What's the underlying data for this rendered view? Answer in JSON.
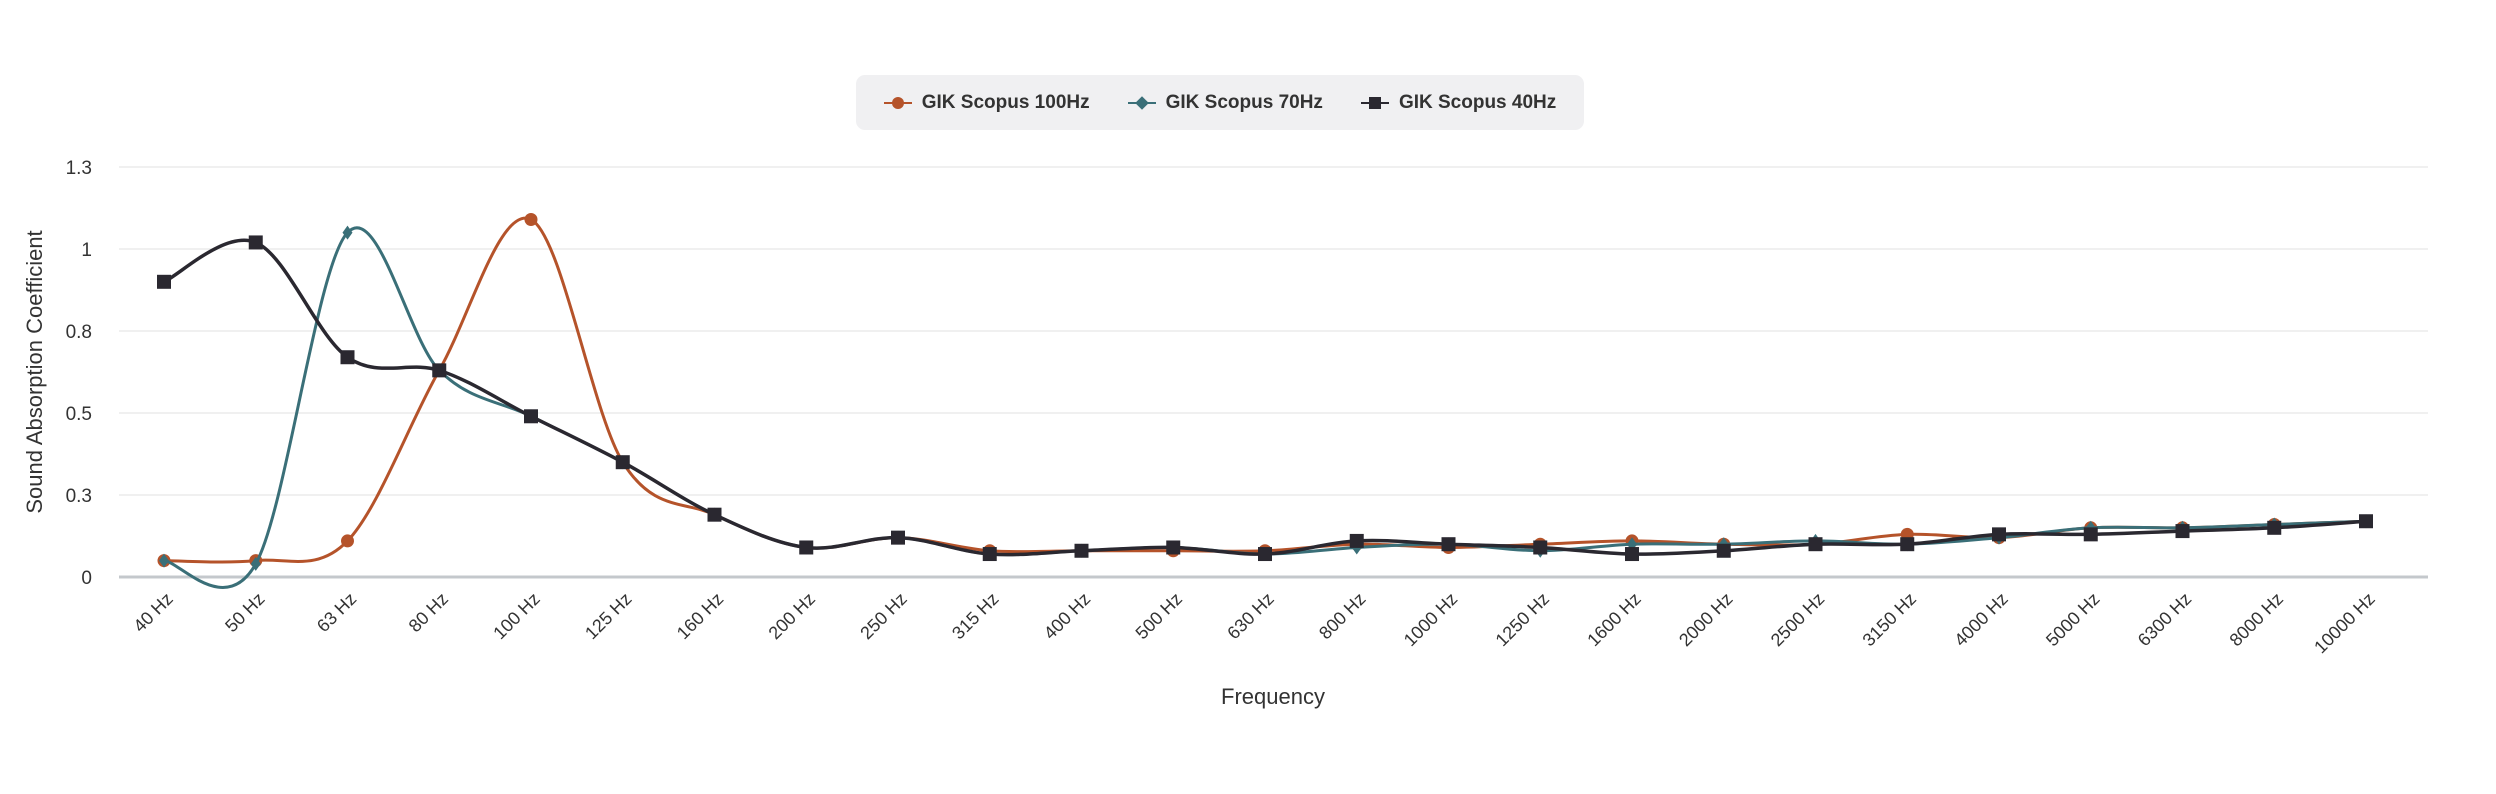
{
  "chart_data": {
    "type": "line",
    "title": "",
    "xlabel": "Frequency",
    "ylabel": "Sound Absorption Coefficient",
    "ylim": [
      0,
      1.25
    ],
    "y_ticks": [
      0,
      0.25,
      0.5,
      0.75,
      1,
      1.25
    ],
    "y_tick_labels": [
      "0",
      "0.3",
      "0.5",
      "0.8",
      "1",
      "1.3"
    ],
    "grid": true,
    "legend_position": "top-center",
    "categories": [
      "40 Hz",
      "50 Hz",
      "63 Hz",
      "80 Hz",
      "100 Hz",
      "125 Hz",
      "160 Hz",
      "200 Hz",
      "250 Hz",
      "315 Hz",
      "400 Hz",
      "500 Hz",
      "630 Hz",
      "800 Hz",
      "1000 Hz",
      "1250 Hz",
      "1600 Hz",
      "2000 Hz",
      "2500 Hz",
      "3150 Hz",
      "4000 Hz",
      "5000 Hz",
      "6300 Hz",
      "8000 Hz",
      "10000 Hz"
    ],
    "series": [
      {
        "name": "GIK Scopus 100Hz",
        "color": "#b5532a",
        "marker": "circle",
        "values": [
          0.05,
          0.05,
          0.11,
          0.63,
          1.09,
          0.35,
          0.19,
          0.09,
          0.12,
          0.08,
          0.08,
          0.08,
          0.08,
          0.1,
          0.09,
          0.1,
          0.11,
          0.1,
          0.1,
          0.13,
          0.12,
          0.15,
          0.15,
          0.16,
          0.17
        ]
      },
      {
        "name": "GIK Scopus 70Hz",
        "color": "#3a6f78",
        "marker": "diamond",
        "values": [
          0.05,
          0.04,
          1.05,
          0.63,
          0.49,
          0.35,
          0.19,
          0.09,
          0.12,
          0.07,
          0.08,
          0.09,
          0.07,
          0.09,
          0.1,
          0.08,
          0.1,
          0.1,
          0.11,
          0.1,
          0.12,
          0.15,
          0.15,
          0.16,
          0.17
        ]
      },
      {
        "name": "GIK Scopus 40Hz",
        "color": "#2a2830",
        "marker": "square",
        "values": [
          0.9,
          1.02,
          0.67,
          0.63,
          0.49,
          0.35,
          0.19,
          0.09,
          0.12,
          0.07,
          0.08,
          0.09,
          0.07,
          0.11,
          0.1,
          0.09,
          0.07,
          0.08,
          0.1,
          0.1,
          0.13,
          0.13,
          0.14,
          0.15,
          0.17
        ]
      }
    ]
  }
}
